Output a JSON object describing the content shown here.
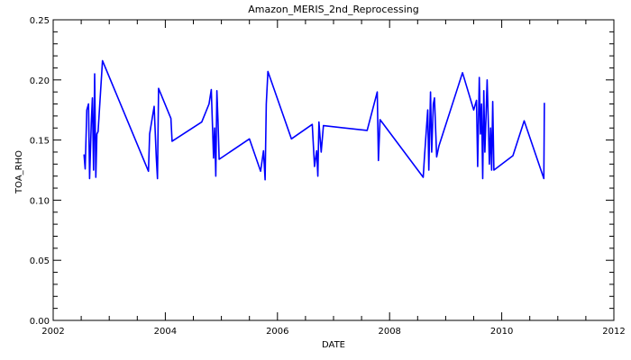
{
  "chart_data": {
    "type": "line",
    "title": "Amazon_MERIS_2nd_Reprocessing",
    "xlabel": "DATE",
    "ylabel": "TOA_RHO",
    "xlim": [
      2002,
      2012
    ],
    "ylim": [
      0.0,
      0.25
    ],
    "x_ticks": [
      "2002",
      "2004",
      "2006",
      "2008",
      "2010",
      "2012"
    ],
    "y_ticks": [
      "0.00",
      "0.05",
      "0.10",
      "0.15",
      "0.20",
      "0.25"
    ],
    "grid": false,
    "line_color": "#0000ff",
    "series": [
      {
        "x": [
          2002.55,
          2002.57,
          2002.6,
          2002.63,
          2002.65,
          2002.68,
          2002.7,
          2002.72,
          2002.74,
          2002.76,
          2002.78,
          2002.8,
          2002.88,
          2003.7,
          2003.72,
          2003.8,
          2003.84,
          2003.86,
          2003.88,
          2004.1,
          2004.12,
          2004.65,
          2004.78,
          2004.82,
          2004.86,
          2004.88,
          2004.9,
          2004.92,
          2004.94,
          2004.96,
          2005.5,
          2005.7,
          2005.75,
          2005.78,
          2005.8,
          2005.83,
          2006.25,
          2006.62,
          2006.66,
          2006.7,
          2006.72,
          2006.74,
          2006.78,
          2006.82,
          2007.6,
          2007.78,
          2007.8,
          2007.83,
          2008.6,
          2008.62,
          2008.68,
          2008.7,
          2008.73,
          2008.75,
          2008.78,
          2008.8,
          2008.84,
          2008.88,
          2009.3,
          2009.5,
          2009.55,
          2009.57,
          2009.6,
          2009.62,
          2009.64,
          2009.66,
          2009.68,
          2009.7,
          2009.72,
          2009.74,
          2009.76,
          2009.78,
          2009.8,
          2009.82,
          2009.84,
          2009.86,
          2010.2,
          2010.4,
          2010.75,
          2010.76
        ],
        "y": [
          0.138,
          0.126,
          0.175,
          0.18,
          0.118,
          0.165,
          0.185,
          0.125,
          0.205,
          0.119,
          0.155,
          0.157,
          0.216,
          0.124,
          0.155,
          0.178,
          0.135,
          0.118,
          0.193,
          0.168,
          0.149,
          0.165,
          0.18,
          0.192,
          0.135,
          0.16,
          0.12,
          0.191,
          0.165,
          0.134,
          0.151,
          0.124,
          0.141,
          0.117,
          0.18,
          0.207,
          0.151,
          0.163,
          0.128,
          0.141,
          0.12,
          0.165,
          0.14,
          0.162,
          0.158,
          0.19,
          0.133,
          0.167,
          0.119,
          0.135,
          0.175,
          0.125,
          0.19,
          0.14,
          0.18,
          0.185,
          0.136,
          0.145,
          0.206,
          0.175,
          0.183,
          0.128,
          0.202,
          0.155,
          0.18,
          0.118,
          0.191,
          0.14,
          0.17,
          0.2,
          0.165,
          0.13,
          0.16,
          0.125,
          0.182,
          0.125,
          0.137,
          0.166,
          0.118,
          0.181
        ]
      }
    ]
  }
}
